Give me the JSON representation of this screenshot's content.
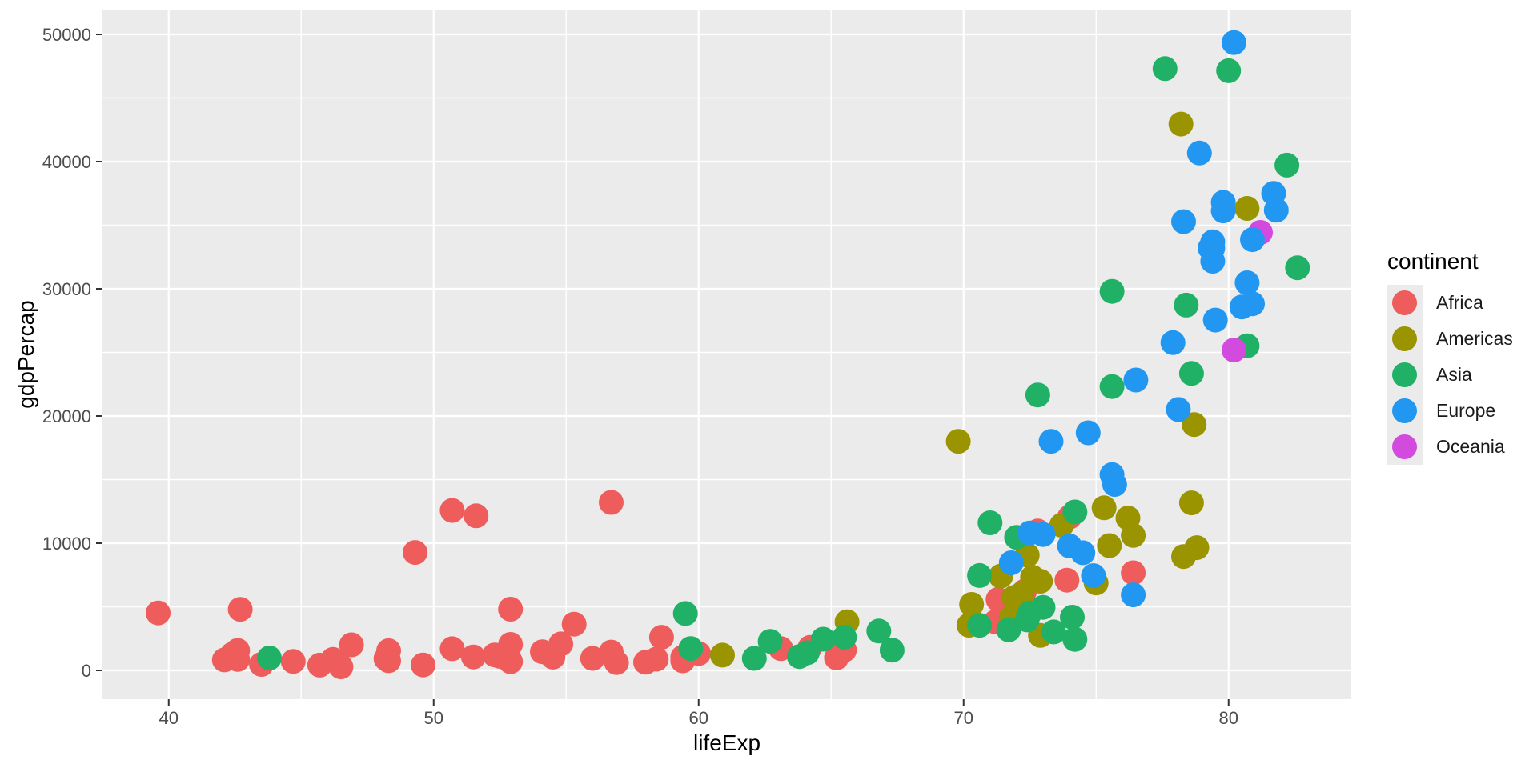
{
  "figure": {
    "background": "#FFFFFF"
  },
  "panel": {
    "background": "#EBEBEB",
    "grid_color": "#FFFFFF",
    "tick_mark_color": "#333333",
    "tick_label_color": "#4D4D4D"
  },
  "axes": {
    "x": {
      "title": "lifeExp",
      "tick_labels": [
        "40",
        "50",
        "60",
        "70",
        "80"
      ],
      "tick_values": [
        40,
        50,
        60,
        70,
        80
      ],
      "minor_tick_values": [
        45,
        55,
        65,
        75
      ]
    },
    "y": {
      "title": "gdpPercap",
      "tick_labels": [
        "0",
        "10000",
        "20000",
        "30000",
        "40000",
        "50000"
      ],
      "tick_values": [
        0,
        10000,
        20000,
        30000,
        40000,
        50000
      ],
      "minor_tick_values": [
        5000,
        15000,
        25000,
        35000,
        45000
      ]
    }
  },
  "legend": {
    "title": "continent",
    "items": [
      {
        "label": "Africa",
        "color": "#EE5D5B"
      },
      {
        "label": "Americas",
        "color": "#9A9400"
      },
      {
        "label": "Asia",
        "color": "#21B166"
      },
      {
        "label": "Europe",
        "color": "#2197F2"
      },
      {
        "label": "Oceania",
        "color": "#D34ADF"
      }
    ]
  },
  "chart_data": {
    "type": "scatter",
    "title": "",
    "xlabel": "lifeExp",
    "ylabel": "gdpPercap",
    "xlim": [
      37.5,
      84.63
    ],
    "ylim": [
      -2264,
      51887
    ],
    "x_ticks": [
      40,
      50,
      60,
      70,
      80
    ],
    "y_ticks": [
      0,
      10000,
      20000,
      30000,
      40000,
      50000
    ],
    "grid": "on",
    "legend_position": "right",
    "series": [
      {
        "name": "Africa",
        "points": [
          [
            72.3,
            6223
          ],
          [
            42.7,
            4797
          ],
          [
            56.7,
            1441
          ],
          [
            50.7,
            12570
          ],
          [
            52.3,
            1217
          ],
          [
            49.6,
            430
          ],
          [
            52.9,
            2042
          ],
          [
            44.7,
            706
          ],
          [
            50.7,
            1704
          ],
          [
            65.2,
            986
          ],
          [
            46.5,
            278
          ],
          [
            55.3,
            3633
          ],
          [
            48.3,
            1545
          ],
          [
            54.8,
            2082
          ],
          [
            71.3,
            5581
          ],
          [
            51.6,
            12154
          ],
          [
            58.0,
            641
          ],
          [
            52.9,
            691
          ],
          [
            56.7,
            13206
          ],
          [
            59.4,
            753
          ],
          [
            60.0,
            1328
          ],
          [
            56.0,
            942
          ],
          [
            46.4,
            579
          ],
          [
            54.1,
            1463
          ],
          [
            42.6,
            1569
          ],
          [
            45.7,
            415
          ],
          [
            74.0,
            12057
          ],
          [
            59.4,
            1044
          ],
          [
            48.3,
            759
          ],
          [
            54.5,
            1042
          ],
          [
            64.2,
            1803
          ],
          [
            72.8,
            10957
          ],
          [
            71.2,
            3820
          ],
          [
            42.1,
            824
          ],
          [
            52.9,
            4811
          ],
          [
            56.9,
            619
          ],
          [
            46.9,
            2014
          ],
          [
            76.4,
            7670
          ],
          [
            46.2,
            863
          ],
          [
            65.5,
            1598
          ],
          [
            63.1,
            1712
          ],
          [
            42.6,
            863
          ],
          [
            48.2,
            926
          ],
          [
            49.3,
            9270
          ],
          [
            58.6,
            2602
          ],
          [
            39.6,
            4513
          ],
          [
            52.5,
            1107
          ],
          [
            58.4,
            883
          ],
          [
            73.9,
            7093
          ],
          [
            51.5,
            1056
          ],
          [
            42.4,
            1271
          ],
          [
            43.5,
            470
          ]
        ]
      },
      {
        "name": "Americas",
        "points": [
          [
            75.3,
            12779
          ],
          [
            65.6,
            3822
          ],
          [
            72.4,
            9066
          ],
          [
            80.7,
            36319
          ],
          [
            78.6,
            13171
          ],
          [
            72.9,
            7007
          ],
          [
            78.8,
            9645
          ],
          [
            78.3,
            8948
          ],
          [
            72.2,
            6025
          ],
          [
            75.0,
            6873
          ],
          [
            71.9,
            5728
          ],
          [
            70.3,
            5186
          ],
          [
            60.9,
            1202
          ],
          [
            70.2,
            3548
          ],
          [
            72.6,
            7321
          ],
          [
            76.2,
            11978
          ],
          [
            72.9,
            2749
          ],
          [
            75.5,
            9809
          ],
          [
            71.8,
            4173
          ],
          [
            71.4,
            7409
          ],
          [
            78.7,
            19329
          ],
          [
            69.8,
            18009
          ],
          [
            78.2,
            42952
          ],
          [
            76.4,
            10611
          ],
          [
            73.7,
            11416
          ]
        ]
      },
      {
        "name": "Asia",
        "points": [
          [
            43.8,
            975
          ],
          [
            75.6,
            29796
          ],
          [
            64.1,
            1391
          ],
          [
            59.7,
            1714
          ],
          [
            73.0,
            4959
          ],
          [
            82.2,
            39725
          ],
          [
            64.7,
            2452
          ],
          [
            70.6,
            3541
          ],
          [
            71.0,
            11606
          ],
          [
            59.5,
            4471
          ],
          [
            80.7,
            25523
          ],
          [
            82.6,
            31656
          ],
          [
            72.5,
            4519
          ],
          [
            67.3,
            1593
          ],
          [
            78.6,
            23348
          ],
          [
            77.6,
            47307
          ],
          [
            72.0,
            10461
          ],
          [
            74.2,
            12452
          ],
          [
            66.8,
            3096
          ],
          [
            62.1,
            944
          ],
          [
            63.8,
            1091
          ],
          [
            75.6,
            22316
          ],
          [
            65.5,
            2606
          ],
          [
            71.7,
            3190
          ],
          [
            72.8,
            21655
          ],
          [
            80.0,
            47143
          ],
          [
            72.4,
            3970
          ],
          [
            74.1,
            4185
          ],
          [
            78.4,
            28718
          ],
          [
            70.6,
            7458
          ],
          [
            74.2,
            2442
          ],
          [
            73.4,
            3025
          ],
          [
            62.7,
            2281
          ]
        ]
      },
      {
        "name": "Europe",
        "points": [
          [
            76.4,
            5937
          ],
          [
            79.8,
            36126
          ],
          [
            79.4,
            33693
          ],
          [
            74.9,
            7446
          ],
          [
            73.0,
            10681
          ],
          [
            75.7,
            14619
          ],
          [
            76.5,
            22833
          ],
          [
            78.3,
            35278
          ],
          [
            79.3,
            33207
          ],
          [
            80.7,
            30470
          ],
          [
            79.4,
            32170
          ],
          [
            79.5,
            27538
          ],
          [
            73.3,
            18009
          ],
          [
            81.8,
            36181
          ],
          [
            78.9,
            40676
          ],
          [
            80.5,
            28570
          ],
          [
            74.5,
            9254
          ],
          [
            79.8,
            36798
          ],
          [
            80.2,
            49357
          ],
          [
            75.6,
            15390
          ],
          [
            78.1,
            20510
          ],
          [
            72.5,
            10808
          ],
          [
            74.0,
            9787
          ],
          [
            74.7,
            18678
          ],
          [
            77.9,
            25768
          ],
          [
            80.9,
            28821
          ],
          [
            80.9,
            33860
          ],
          [
            81.7,
            37506
          ],
          [
            71.8,
            8458
          ],
          [
            79.4,
            33203
          ]
        ]
      },
      {
        "name": "Oceania",
        "points": [
          [
            81.2,
            34435
          ],
          [
            80.2,
            25185
          ]
        ]
      }
    ]
  }
}
